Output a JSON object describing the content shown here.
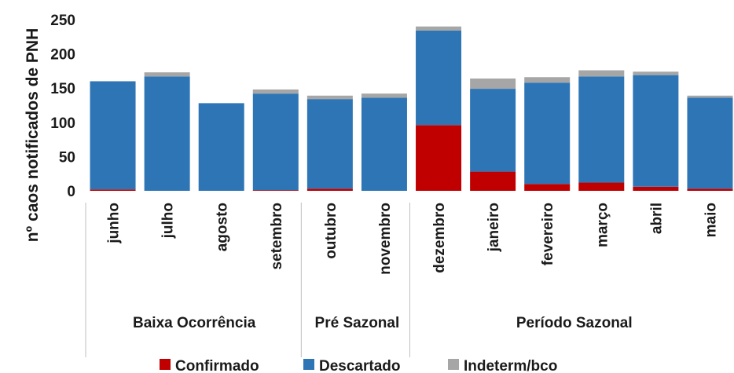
{
  "chart_data": {
    "type": "bar",
    "stacked": true,
    "title": "",
    "xlabel": "",
    "ylabel": "nº caos notificados de PNH",
    "ylim": [
      0,
      250
    ],
    "yticks": [
      0,
      50,
      100,
      150,
      200,
      250
    ],
    "grid": false,
    "legend_position": "bottom",
    "categories": [
      "junho",
      "julho",
      "agosto",
      "setembro",
      "outubro",
      "novembro",
      "dezembro",
      "janeiro",
      "fevereiro",
      "março",
      "abril",
      "maio"
    ],
    "groups": [
      {
        "label": "Baixa Ocorrência",
        "categories": [
          "junho",
          "julho",
          "agosto",
          "setembro"
        ]
      },
      {
        "label": "Pré Sazonal",
        "categories": [
          "outubro",
          "novembro"
        ]
      },
      {
        "label": "Período Sazonal",
        "categories": [
          "dezembro",
          "janeiro",
          "fevereiro",
          "março",
          "abril",
          "maio"
        ]
      }
    ],
    "series": [
      {
        "name": "Confirmado",
        "color": "#c00000",
        "values": [
          2,
          0,
          0,
          1,
          3,
          0,
          96,
          28,
          10,
          12,
          6,
          3
        ]
      },
      {
        "name": "Descartado",
        "color": "#2e75b6",
        "values": [
          158,
          167,
          128,
          141,
          131,
          136,
          138,
          121,
          148,
          155,
          163,
          133
        ]
      },
      {
        "name": "Indeterm/bco",
        "color": "#a6a6a6",
        "values": [
          0,
          6,
          0,
          6,
          5,
          6,
          6,
          15,
          8,
          9,
          5,
          3
        ]
      }
    ]
  }
}
